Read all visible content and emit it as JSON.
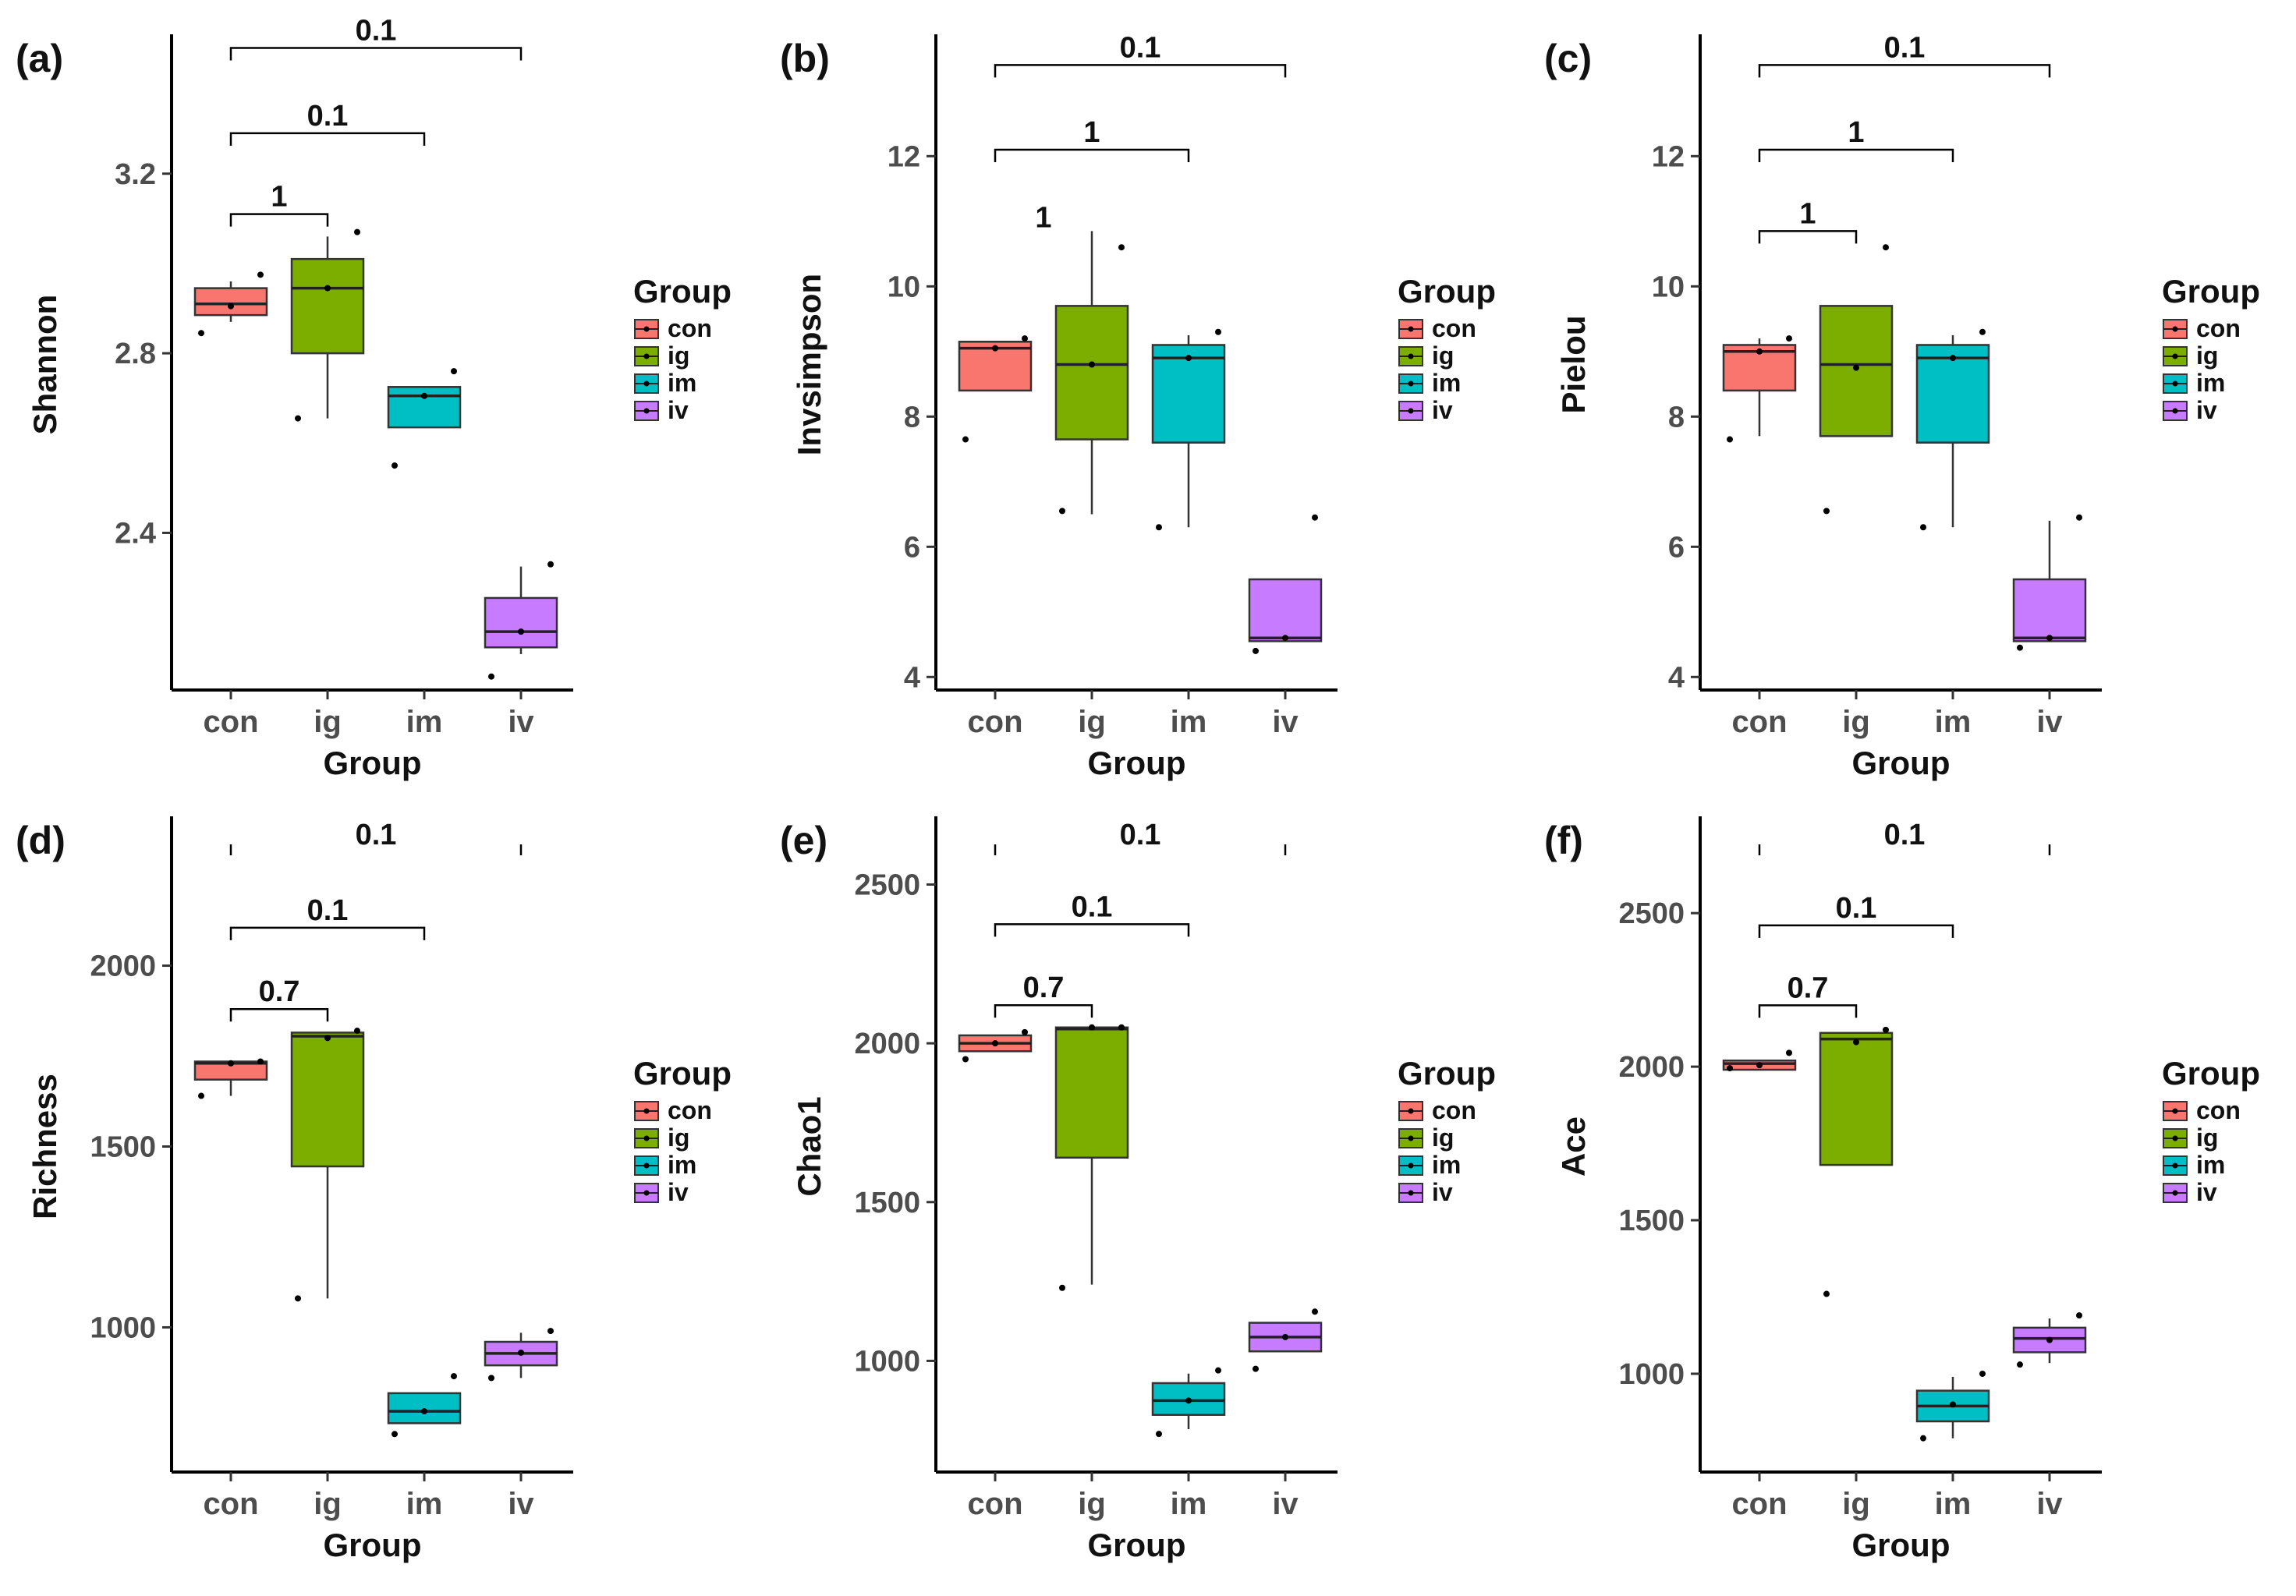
{
  "figure": {
    "colors": {
      "con": "#F8766D",
      "ig": "#7CAE00",
      "im": "#00BFC4",
      "iv": "#C77CFF"
    }
  },
  "chart_data": [
    {
      "type": "box",
      "panel": "(a)",
      "ylabel": "Shannon",
      "xlabel": "Group",
      "categories": [
        "con",
        "ig",
        "im",
        "iv"
      ],
      "ylim": [
        2.05,
        3.5
      ],
      "yticks": [
        2.4,
        2.8,
        3.2
      ],
      "ytick_labels": [
        "2.4",
        "2.8",
        "3.2"
      ],
      "boxes": [
        {
          "group": "con",
          "q1": 2.885,
          "median": 2.91,
          "q3": 2.945,
          "whisker_low": 2.87,
          "whisker_high": 2.96
        },
        {
          "group": "ig",
          "q1": 2.8,
          "median": 2.945,
          "q3": 3.01,
          "whisker_low": 2.655,
          "whisker_high": 3.06
        },
        {
          "group": "im",
          "q1": 2.635,
          "median": 2.705,
          "q3": 2.725,
          "whisker_low": 2.635,
          "whisker_high": 2.725
        },
        {
          "group": "iv",
          "q1": 2.145,
          "median": 2.18,
          "q3": 2.255,
          "whisker_low": 2.13,
          "whisker_high": 2.325
        }
      ],
      "points": [
        {
          "group": "con",
          "values": [
            2.845,
            2.905,
            2.975
          ]
        },
        {
          "group": "ig",
          "values": [
            2.655,
            2.945,
            3.07
          ]
        },
        {
          "group": "im",
          "values": [
            2.55,
            2.705,
            2.76
          ]
        },
        {
          "group": "iv",
          "values": [
            2.08,
            2.18,
            2.33
          ]
        }
      ],
      "comparisons": [
        {
          "from": "con",
          "to": "ig",
          "label": "1",
          "level": 3.11
        },
        {
          "from": "con",
          "to": "im",
          "label": "0.1",
          "level": 3.29
        },
        {
          "from": "con",
          "to": "iv",
          "label": "0.1",
          "level": 3.48
        }
      ],
      "legend": {
        "title": "Group",
        "items": [
          "con",
          "ig",
          "im",
          "iv"
        ]
      }
    },
    {
      "type": "box",
      "panel": "(b)",
      "ylabel": "Invsimpson",
      "xlabel": "Group",
      "categories": [
        "con",
        "ig",
        "im",
        "iv"
      ],
      "ylim": [
        3.8,
        13.8
      ],
      "yticks": [
        4,
        6,
        8,
        10,
        12
      ],
      "ytick_labels": [
        "4",
        "6",
        "8",
        "10",
        "12"
      ],
      "boxes": [
        {
          "group": "con",
          "q1": 8.4,
          "median": 9.05,
          "q3": 9.15,
          "whisker_low": 8.4,
          "whisker_high": 9.15
        },
        {
          "group": "ig",
          "q1": 7.65,
          "median": 8.8,
          "q3": 9.7,
          "whisker_low": 6.5,
          "whisker_high": 10.85
        },
        {
          "group": "im",
          "q1": 7.6,
          "median": 8.9,
          "q3": 9.1,
          "whisker_low": 6.3,
          "whisker_high": 9.25
        },
        {
          "group": "iv",
          "q1": 4.55,
          "median": 4.6,
          "q3": 5.5,
          "whisker_low": 4.55,
          "whisker_high": 5.5
        }
      ],
      "points": [
        {
          "group": "con",
          "values": [
            7.65,
            9.05,
            9.2
          ]
        },
        {
          "group": "ig",
          "values": [
            6.55,
            8.8,
            10.6
          ]
        },
        {
          "group": "im",
          "values": [
            6.3,
            8.9,
            9.3
          ]
        },
        {
          "group": "iv",
          "values": [
            4.4,
            4.6,
            6.45
          ]
        }
      ],
      "comparisons": [
        {
          "from": "con",
          "to": "ig",
          "label": "1",
          "level": null,
          "label_level": 11.05
        },
        {
          "from": "con",
          "to": "im",
          "label": "1",
          "level": 12.1
        },
        {
          "from": "con",
          "to": "iv",
          "label": "0.1",
          "level": 13.4
        }
      ],
      "legend": {
        "title": "Group",
        "items": [
          "con",
          "ig",
          "im",
          "iv"
        ]
      }
    },
    {
      "type": "box",
      "panel": "(c)",
      "ylabel": "Pielou",
      "xlabel": "Group",
      "categories": [
        "con",
        "ig",
        "im",
        "iv"
      ],
      "ylim": [
        3.8,
        13.8
      ],
      "yticks": [
        4,
        6,
        8,
        10,
        12
      ],
      "ytick_labels": [
        "4",
        "6",
        "8",
        "10",
        "12"
      ],
      "boxes": [
        {
          "group": "con",
          "q1": 8.4,
          "median": 9.0,
          "q3": 9.1,
          "whisker_low": 7.7,
          "whisker_high": 9.2
        },
        {
          "group": "ig",
          "q1": 7.7,
          "median": 8.8,
          "q3": 9.7,
          "whisker_low": 7.7,
          "whisker_high": 9.7
        },
        {
          "group": "im",
          "q1": 7.6,
          "median": 8.9,
          "q3": 9.1,
          "whisker_low": 6.3,
          "whisker_high": 9.25
        },
        {
          "group": "iv",
          "q1": 4.55,
          "median": 4.6,
          "q3": 5.5,
          "whisker_low": 4.55,
          "whisker_high": 6.4
        }
      ],
      "points": [
        {
          "group": "con",
          "values": [
            7.65,
            9.0,
            9.2
          ]
        },
        {
          "group": "ig",
          "values": [
            6.55,
            8.75,
            10.6
          ]
        },
        {
          "group": "im",
          "values": [
            6.3,
            8.9,
            9.3
          ]
        },
        {
          "group": "iv",
          "values": [
            4.45,
            4.6,
            6.45
          ]
        }
      ],
      "comparisons": [
        {
          "from": "con",
          "to": "ig",
          "label": "1",
          "level": 10.85
        },
        {
          "from": "con",
          "to": "im",
          "label": "1",
          "level": 12.1
        },
        {
          "from": "con",
          "to": "iv",
          "label": "0.1",
          "level": 13.4
        }
      ],
      "legend": {
        "title": "Group",
        "items": [
          "con",
          "ig",
          "im",
          "iv"
        ]
      }
    },
    {
      "type": "box",
      "panel": "(d)",
      "ylabel": "Richness",
      "xlabel": "Group",
      "categories": [
        "con",
        "ig",
        "im",
        "iv"
      ],
      "ylim": [
        600,
        2400
      ],
      "yticks": [
        1000,
        1500,
        2000
      ],
      "ytick_labels": [
        "1000",
        "1500",
        "2000"
      ],
      "boxes": [
        {
          "group": "con",
          "q1": 1685,
          "median": 1730,
          "q3": 1735,
          "whisker_low": 1640,
          "whisker_high": 1735
        },
        {
          "group": "ig",
          "q1": 1445,
          "median": 1805,
          "q3": 1815,
          "whisker_low": 1080,
          "whisker_high": 1815
        },
        {
          "group": "im",
          "q1": 735,
          "median": 768,
          "q3": 818,
          "whisker_low": 735,
          "whisker_high": 818
        },
        {
          "group": "iv",
          "q1": 895,
          "median": 928,
          "q3": 960,
          "whisker_low": 860,
          "whisker_high": 985
        }
      ],
      "points": [
        {
          "group": "con",
          "values": [
            1640,
            1730,
            1735
          ]
        },
        {
          "group": "ig",
          "values": [
            1080,
            1800,
            1820
          ]
        },
        {
          "group": "im",
          "values": [
            705,
            768,
            865
          ]
        },
        {
          "group": "iv",
          "values": [
            860,
            930,
            990
          ]
        }
      ],
      "comparisons": [
        {
          "from": "con",
          "to": "ig",
          "label": "0.7",
          "level": 1880
        },
        {
          "from": "con",
          "to": "im",
          "label": "0.1",
          "level": 2105
        },
        {
          "from": "con",
          "to": "iv",
          "label": "0.1",
          "level": null,
          "label_level": 2335
        }
      ],
      "legend": {
        "title": "Group",
        "items": [
          "con",
          "ig",
          "im",
          "iv"
        ]
      }
    },
    {
      "type": "box",
      "panel": "(e)",
      "ylabel": "Chao1",
      "xlabel": "Group",
      "categories": [
        "con",
        "ig",
        "im",
        "iv"
      ],
      "ylim": [
        650,
        2700
      ],
      "yticks": [
        1000,
        1500,
        2000,
        2500
      ],
      "ytick_labels": [
        "1000",
        "1500",
        "2000",
        "2500"
      ],
      "boxes": [
        {
          "group": "con",
          "q1": 1975,
          "median": 2000,
          "q3": 2025,
          "whisker_low": 1975,
          "whisker_high": 2025
        },
        {
          "group": "ig",
          "q1": 1640,
          "median": 2045,
          "q3": 2050,
          "whisker_low": 1240,
          "whisker_high": 2050
        },
        {
          "group": "im",
          "q1": 830,
          "median": 875,
          "q3": 930,
          "whisker_low": 785,
          "whisker_high": 960
        },
        {
          "group": "iv",
          "q1": 1030,
          "median": 1075,
          "q3": 1120,
          "whisker_low": 1030,
          "whisker_high": 1120
        }
      ],
      "points": [
        {
          "group": "con",
          "values": [
            1950,
            2000,
            2035
          ]
        },
        {
          "group": "ig",
          "values": [
            1230,
            2050,
            2050
          ]
        },
        {
          "group": "im",
          "values": [
            770,
            875,
            970
          ]
        },
        {
          "group": "iv",
          "values": [
            975,
            1075,
            1155
          ]
        }
      ],
      "comparisons": [
        {
          "from": "con",
          "to": "ig",
          "label": "0.7",
          "level": 2120
        },
        {
          "from": "con",
          "to": "im",
          "label": "0.1",
          "level": 2375
        },
        {
          "from": "con",
          "to": "iv",
          "label": "0.1",
          "level": null,
          "label_level": 2620
        }
      ],
      "legend": {
        "title": "Group",
        "items": [
          "con",
          "ig",
          "im",
          "iv"
        ]
      }
    },
    {
      "type": "box",
      "panel": "(f)",
      "ylabel": "Ace",
      "xlabel": "Group",
      "categories": [
        "con",
        "ig",
        "im",
        "iv"
      ],
      "ylim": [
        680,
        2800
      ],
      "yticks": [
        1000,
        1500,
        2000,
        2500
      ],
      "ytick_labels": [
        "1000",
        "1500",
        "2000",
        "2500"
      ],
      "boxes": [
        {
          "group": "con",
          "q1": 1990,
          "median": 2010,
          "q3": 2020,
          "whisker_low": 1990,
          "whisker_high": 2020
        },
        {
          "group": "ig",
          "q1": 1680,
          "median": 2090,
          "q3": 2110,
          "whisker_low": 1680,
          "whisker_high": 2110
        },
        {
          "group": "im",
          "q1": 845,
          "median": 895,
          "q3": 945,
          "whisker_low": 790,
          "whisker_high": 990
        },
        {
          "group": "iv",
          "q1": 1070,
          "median": 1115,
          "q3": 1150,
          "whisker_low": 1035,
          "whisker_high": 1180
        }
      ],
      "points": [
        {
          "group": "con",
          "values": [
            1995,
            2005,
            2045
          ]
        },
        {
          "group": "ig",
          "values": [
            1260,
            2080,
            2120
          ]
        },
        {
          "group": "im",
          "values": [
            790,
            900,
            1000
          ]
        },
        {
          "group": "iv",
          "values": [
            1030,
            1110,
            1190
          ]
        }
      ],
      "comparisons": [
        {
          "from": "con",
          "to": "ig",
          "label": "0.7",
          "level": 2200
        },
        {
          "from": "con",
          "to": "im",
          "label": "0.1",
          "level": 2460
        },
        {
          "from": "con",
          "to": "iv",
          "label": "0.1",
          "level": null,
          "label_level": 2710
        }
      ],
      "legend": {
        "title": "Group",
        "items": [
          "con",
          "ig",
          "im",
          "iv"
        ]
      }
    }
  ]
}
